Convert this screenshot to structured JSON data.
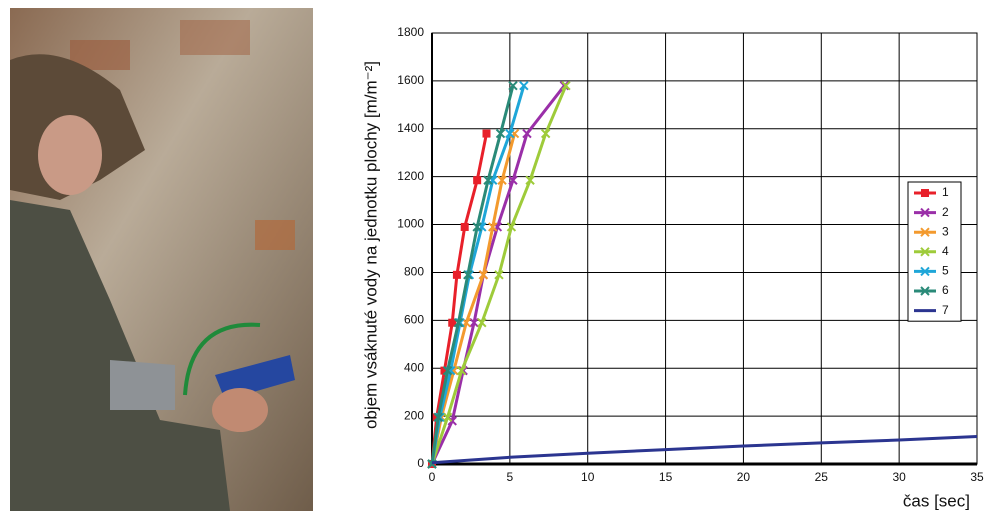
{
  "chart_data": {
    "type": "line",
    "xlabel": "čas [sec]",
    "ylabel": "objem vsáknuté vody na jednotku plochy [m/m⁻²]",
    "xlim": [
      0,
      35
    ],
    "xticks": [
      0,
      5,
      10,
      15,
      20,
      25,
      30,
      35
    ],
    "ylim": [
      0,
      1800
    ],
    "yticks": [
      0,
      200,
      400,
      600,
      800,
      1000,
      1200,
      1400,
      1600,
      1800
    ],
    "grid": true,
    "legend": "right",
    "series": [
      {
        "name": "1",
        "color": "#e8202a",
        "marker": "square",
        "x": [
          0,
          0.3,
          0.8,
          1.3,
          1.6,
          2.1,
          2.9,
          3.5
        ],
        "values": [
          0,
          195,
          390,
          590,
          790,
          990,
          1185,
          1380
        ]
      },
      {
        "name": "2",
        "color": "#9a2fa8",
        "marker": "x",
        "x": [
          0,
          1.3,
          2.0,
          2.7,
          3.3,
          4.2,
          5.2,
          6.1,
          8.5
        ],
        "values": [
          0,
          180,
          390,
          590,
          790,
          990,
          1185,
          1380,
          1580
        ]
      },
      {
        "name": "3",
        "color": "#f39a2e",
        "marker": "x",
        "x": [
          0,
          0.6,
          1.4,
          2.2,
          3.3,
          3.9,
          4.5,
          5.3
        ],
        "values": [
          0,
          195,
          390,
          590,
          790,
          990,
          1185,
          1380
        ]
      },
      {
        "name": "4",
        "color": "#9ecb3a",
        "marker": "x",
        "x": [
          0,
          1.0,
          1.9,
          3.2,
          4.3,
          5.1,
          6.3,
          7.3,
          8.6
        ],
        "values": [
          0,
          195,
          390,
          590,
          790,
          990,
          1185,
          1380,
          1580
        ]
      },
      {
        "name": "5",
        "color": "#1fa6d8",
        "marker": "x",
        "x": [
          0,
          0.5,
          1.2,
          1.8,
          2.4,
          3.2,
          3.9,
          5.0,
          5.9
        ],
        "values": [
          0,
          195,
          390,
          590,
          790,
          990,
          1185,
          1380,
          1580
        ]
      },
      {
        "name": "6",
        "color": "#2a8a78",
        "marker": "x",
        "x": [
          0,
          0.4,
          1.0,
          1.7,
          2.3,
          2.9,
          3.6,
          4.4,
          5.2
        ],
        "values": [
          0,
          195,
          390,
          590,
          790,
          990,
          1185,
          1380,
          1580
        ]
      },
      {
        "name": "7",
        "color": "#2b3590",
        "marker": "none",
        "x": [
          0,
          5,
          10,
          15,
          20,
          25,
          30,
          35
        ],
        "values": [
          5,
          28,
          45,
          60,
          75,
          88,
          100,
          115
        ]
      }
    ]
  }
}
